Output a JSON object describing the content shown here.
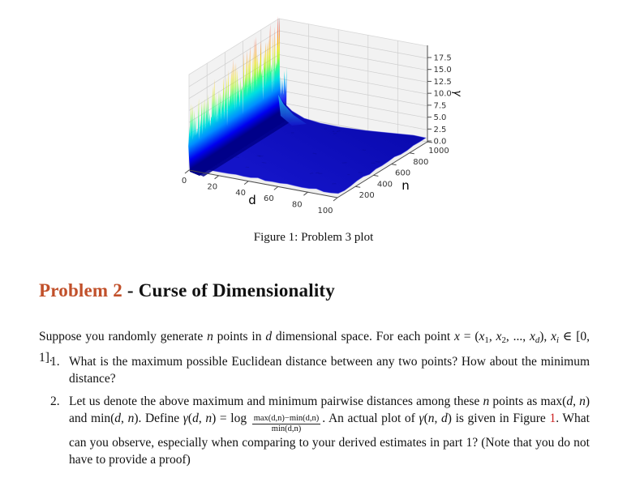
{
  "figure": {
    "caption": "Figure 1: Problem 3 plot"
  },
  "chart_data": {
    "type": "surface",
    "title": "",
    "xlabel": "d",
    "ylabel": "n",
    "zlabel": "γ",
    "x_ticks": [
      0,
      20,
      40,
      60,
      80,
      100
    ],
    "y_ticks": [
      200,
      400,
      600,
      800,
      1000
    ],
    "z_ticks": [
      "0.0",
      "2.5",
      "5.0",
      "7.5",
      "10.0",
      "12.5",
      "15.0",
      "17.5"
    ],
    "x_range": [
      0,
      100
    ],
    "y_range": [
      0,
      1000
    ],
    "z_range": [
      0,
      20
    ],
    "colormap": "jet",
    "surface_description": "gamma(d,n) is approximately 0 (flat dark-blue plane) over nearly the whole (d,n) grid; a sharp spiky ridge at d≈1 runs along the n axis, rising from gamma≈13 at low n to gamma≈18 near n=1000, colored jet (blue base through cyan, green, yellow, orange to red spike tips)",
    "ridge_profile": {
      "d_location": 1,
      "gamma_at_n_min": 13,
      "gamma_at_n_max": 18
    }
  },
  "heading": {
    "runs": [
      {
        "t": "Problem 2",
        "s": "accent"
      },
      {
        "t": " - Curse of Dimensionality",
        "s": ""
      }
    ]
  },
  "intro": {
    "runs": [
      {
        "t": "Suppose you randomly generate ",
        "s": ""
      },
      {
        "t": "n",
        "s": "i"
      },
      {
        "t": " points in ",
        "s": ""
      },
      {
        "t": "d",
        "s": "i"
      },
      {
        "t": " dimensional space.  For each point ",
        "s": ""
      },
      {
        "t": "x",
        "s": "i"
      },
      {
        "t": " = (",
        "s": ""
      },
      {
        "t": "x",
        "s": "i"
      },
      {
        "t": "1",
        "s": "s1"
      },
      {
        "t": ", ",
        "s": ""
      },
      {
        "t": "x",
        "s": "i"
      },
      {
        "t": "2",
        "s": "s1"
      },
      {
        "t": ", ..., ",
        "s": ""
      },
      {
        "t": "x",
        "s": "i"
      },
      {
        "t": "d",
        "s": "s2"
      },
      {
        "t": "), ",
        "s": ""
      },
      {
        "t": "x",
        "s": "i"
      },
      {
        "t": "i",
        "s": "s2"
      },
      {
        "t": " ∈ [0, 1].",
        "s": ""
      }
    ]
  },
  "list": {
    "item1": {
      "number": "1.",
      "runs": [
        {
          "t": "What is the maximum possible Euclidean distance between any two points?  How about the minimum distance?",
          "s": ""
        }
      ]
    },
    "item2": {
      "number": "2.",
      "runs": [
        {
          "t": "Let us denote the above maximum and minimum pairwise distances among these ",
          "s": ""
        },
        {
          "t": "n",
          "s": "i"
        },
        {
          "t": " points as max(",
          "s": ""
        },
        {
          "t": "d",
          "s": "i"
        },
        {
          "t": ", ",
          "s": ""
        },
        {
          "t": "n",
          "s": "i"
        },
        {
          "t": ") and min(",
          "s": ""
        },
        {
          "t": "d",
          "s": "i"
        },
        {
          "t": ", ",
          "s": ""
        },
        {
          "t": "n",
          "s": "i"
        },
        {
          "t": ").  Define ",
          "s": ""
        },
        {
          "t": "γ",
          "s": "i"
        },
        {
          "t": "(",
          "s": ""
        },
        {
          "t": "d",
          "s": "i"
        },
        {
          "t": ", ",
          "s": ""
        },
        {
          "t": "n",
          "s": "i"
        },
        {
          "t": ") = log ",
          "s": ""
        },
        {
          "s": "frac",
          "num": "max(d,n)−min(d,n)",
          "den": "min(d,n)"
        },
        {
          "t": ".  An actual plot of ",
          "s": ""
        },
        {
          "t": "γ",
          "s": "i"
        },
        {
          "t": "(",
          "s": ""
        },
        {
          "t": "n",
          "s": "i"
        },
        {
          "t": ", ",
          "s": ""
        },
        {
          "t": "d",
          "s": "i"
        },
        {
          "t": ") is given in Figure ",
          "s": ""
        },
        {
          "t": "1",
          "s": "red"
        },
        {
          "t": ".  What can you observe, especially when comparing to your derived estimates in part 1? (Note that you do not have to provide a proof)",
          "s": ""
        }
      ]
    }
  },
  "colors": {
    "accent_heading": "#c1502a",
    "figure_link": "#cc2222",
    "surface_low": "#0d0dbe",
    "spike_high": "#d40000",
    "pane": "#f2f2f2",
    "grid": "#cfcfcf"
  }
}
